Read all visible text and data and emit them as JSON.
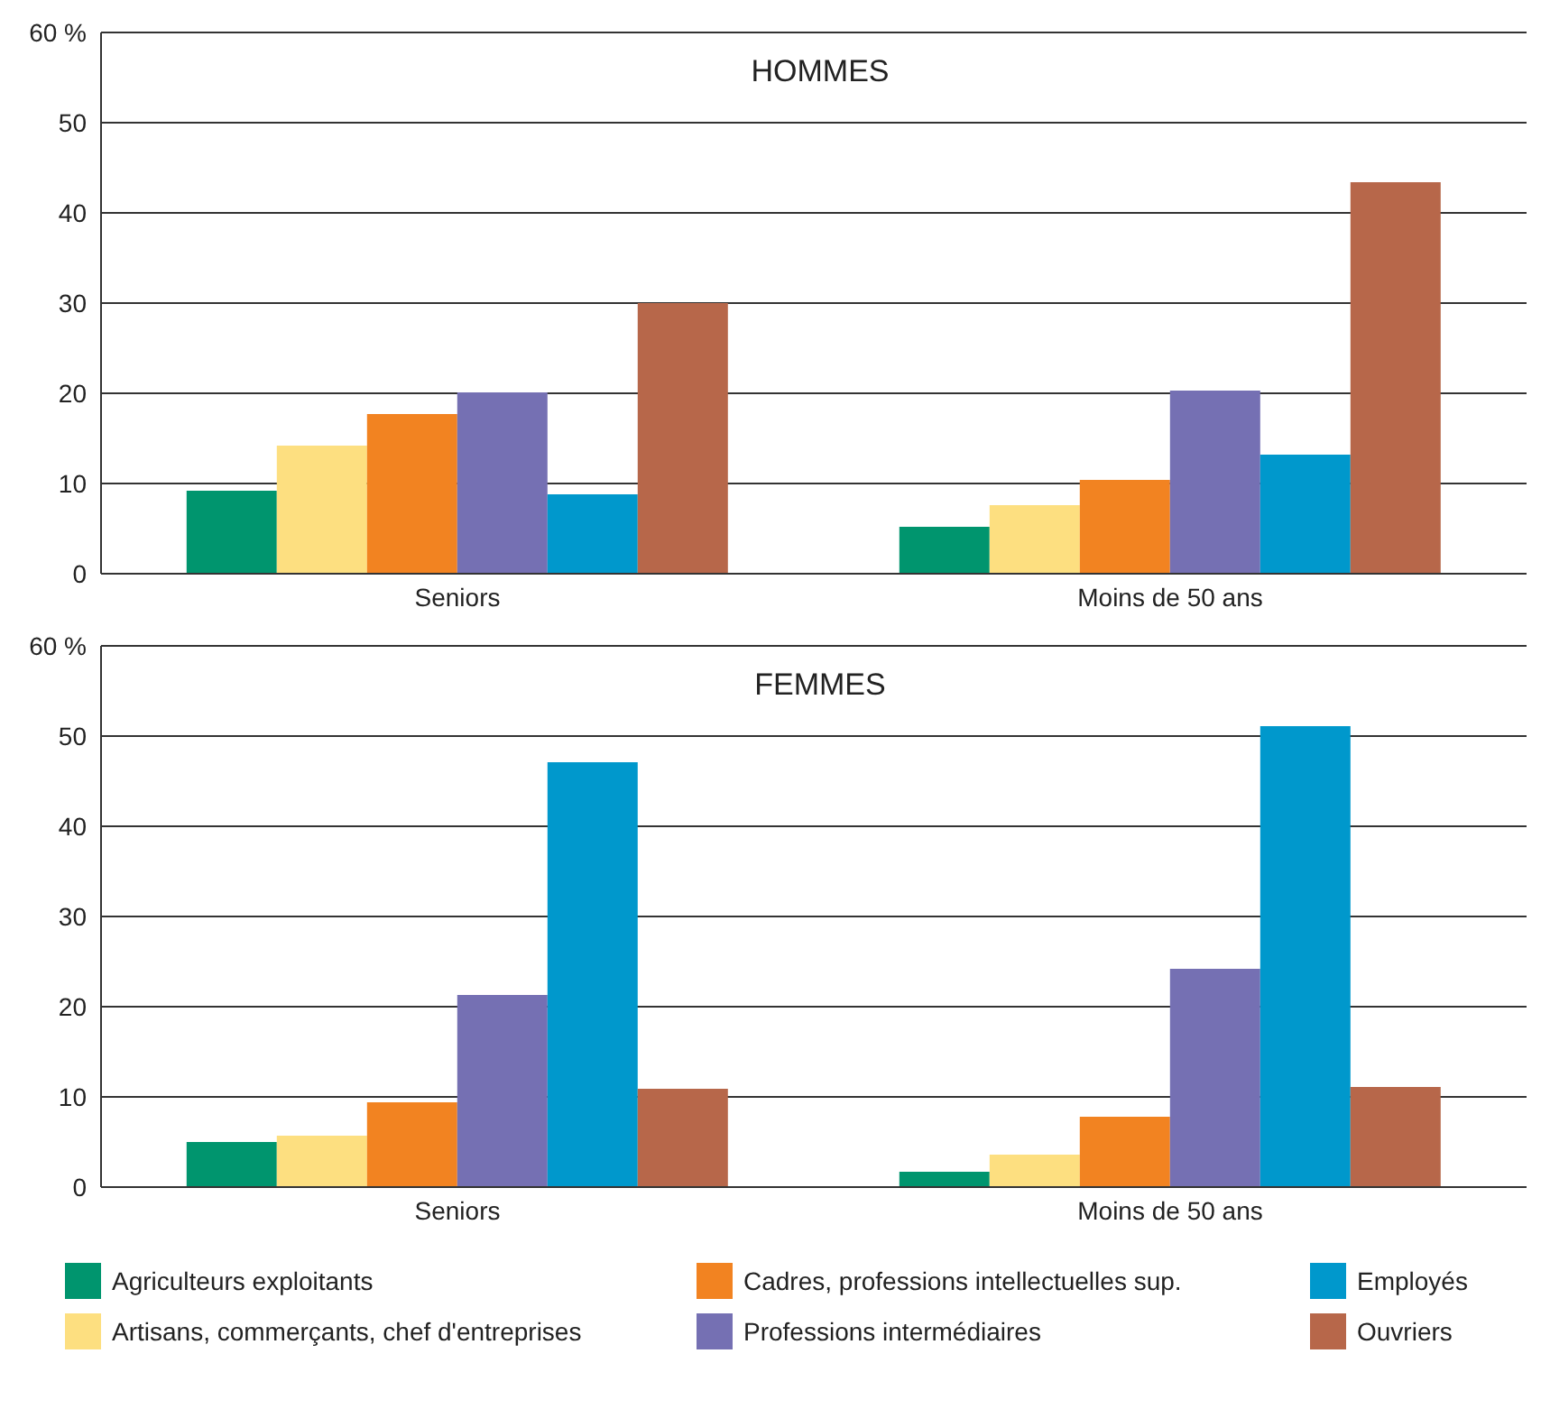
{
  "chart_data": [
    {
      "type": "bar",
      "title": "HOMMES",
      "categories": [
        "Seniors",
        "Moins de 50 ans"
      ],
      "series": [
        {
          "color": "#00956e",
          "values": [
            9.2,
            5.2
          ]
        },
        {
          "color": "#fddf80",
          "values": [
            14.2,
            7.6
          ]
        },
        {
          "color": "#f28321",
          "values": [
            17.7,
            10.4
          ]
        },
        {
          "color": "#7570b3",
          "values": [
            20.1,
            20.3
          ]
        },
        {
          "color": "#0098cc",
          "values": [
            8.8,
            13.2
          ]
        },
        {
          "color": "#b7674a",
          "values": [
            30.0,
            43.4
          ]
        }
      ],
      "ylim": [
        0,
        60
      ],
      "yticks": [
        0,
        10,
        20,
        30,
        40,
        50,
        {
          "value": 60,
          "label": "60 %"
        }
      ],
      "grid": "y"
    },
    {
      "type": "bar",
      "title": "FEMMES",
      "categories": [
        "Seniors",
        "Moins de 50 ans"
      ],
      "series": [
        {
          "name": "Agriculteurs exploitants",
          "color": "#00956e",
          "values": [
            5.0,
            1.7
          ]
        },
        {
          "name": "Artisans, commerçants, chef d'entreprises",
          "color": "#fddf80",
          "values": [
            5.7,
            3.6
          ]
        },
        {
          "name": "Cadres, professions intellectuelles sup.",
          "color": "#f28321",
          "values": [
            9.4,
            7.8
          ]
        },
        {
          "name": "Professions intermédiaires",
          "color": "#7570b3",
          "values": [
            21.3,
            24.2
          ]
        },
        {
          "name": "Employés",
          "color": "#0098cc",
          "values": [
            47.1,
            51.1
          ]
        },
        {
          "name": "Ouvriers",
          "color": "#b7674a",
          "values": [
            10.9,
            11.1
          ]
        }
      ],
      "ylim": [
        0,
        60
      ],
      "yticks": [
        0,
        10,
        20,
        30,
        40,
        50,
        {
          "value": 60,
          "label": "60 %"
        }
      ],
      "grid": "y",
      "legend": "bottom"
    }
  ]
}
